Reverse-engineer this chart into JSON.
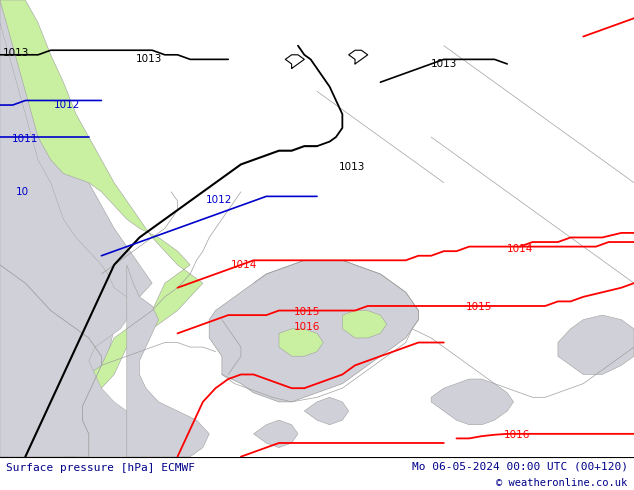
{
  "title_left": "Surface pressure [hPa] ECMWF",
  "title_right": "Mo 06-05-2024 00:00 UTC (00+120)",
  "copyright": "© weatheronline.co.uk",
  "bg_green_light": "#c8f0a0",
  "bg_green": "#b8e890",
  "sea_color": "#d0d0d8",
  "coast_color": "#a0a0a0",
  "footer_bg": "#ffffff",
  "footer_text_color": "#00008b",
  "red_color": "#ff0000",
  "black_color": "#000000",
  "blue_color": "#0000cc",
  "label_fontsize": 7.5,
  "footer_fontsize": 8.0,
  "fig_width": 6.34,
  "fig_height": 4.9,
  "dpi": 100
}
